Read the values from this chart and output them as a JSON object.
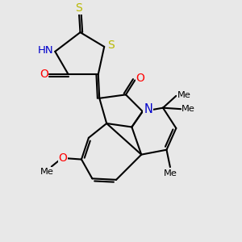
{
  "background_color": "#e8e8e8",
  "atom_colors": {
    "C": "#000000",
    "N": "#0000cc",
    "O": "#ff0000",
    "S": "#b8b800",
    "H": "#555555"
  },
  "bond_lw": 1.4,
  "figsize": [
    3.0,
    3.0
  ],
  "dpi": 100,
  "xlim": [
    0,
    10
  ],
  "ylim": [
    0,
    10
  ]
}
